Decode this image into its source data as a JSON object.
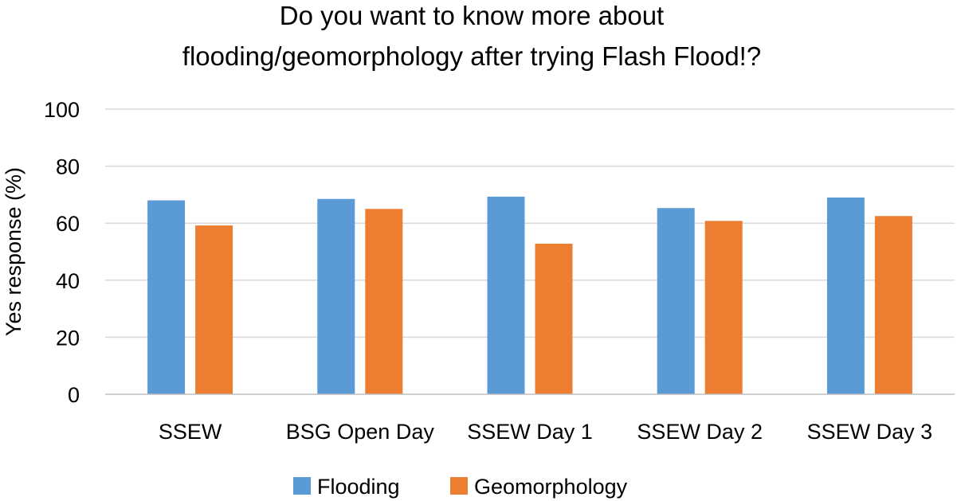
{
  "chart_data": {
    "type": "bar",
    "title_lines": [
      "Do you want to know more about",
      "flooding/geomorphology after trying Flash Flood!?"
    ],
    "xlabel": "",
    "ylabel": "Yes response (%)",
    "ylim": [
      0,
      100
    ],
    "yticks": [
      0,
      20,
      40,
      60,
      80,
      100
    ],
    "categories": [
      "SSEW",
      "BSG Open Day",
      "SSEW Day 1",
      "SSEW Day 2",
      "SSEW Day 3"
    ],
    "series": [
      {
        "name": "Flooding",
        "color": "#5B9BD5",
        "values": [
          68,
          68.5,
          69.3,
          65.3,
          69
        ]
      },
      {
        "name": "Geomorphology",
        "color": "#ED7D31",
        "values": [
          59.2,
          65,
          52.8,
          60.8,
          62.5
        ]
      }
    ],
    "grid": true,
    "legend_position": "bottom"
  }
}
